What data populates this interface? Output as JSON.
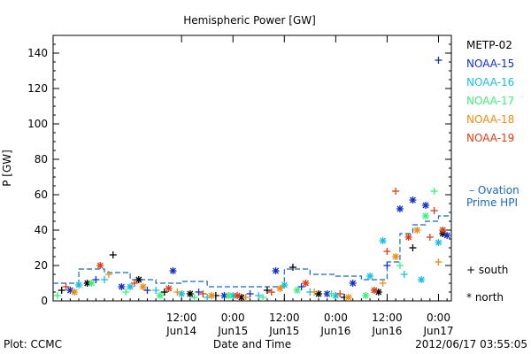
{
  "chart_data": {
    "type": "scatter",
    "title": "Hemispheric Power [GW]",
    "ylabel": "P [GW]",
    "xlabel": "Date and Time",
    "ylim": [
      0,
      150
    ],
    "yticks": [
      0,
      20,
      40,
      60,
      80,
      100,
      120,
      140
    ],
    "xlim": [
      "2012-06-13T06:00",
      "2012-06-17T03:00"
    ],
    "xticks": [
      {
        "t": "2012-06-14T12:00",
        "line1": "12:00",
        "line2": "Jun14"
      },
      {
        "t": "2012-06-15T00:00",
        "line1": "0:00",
        "line2": "Jun15"
      },
      {
        "t": "2012-06-15T12:00",
        "line1": "12:00",
        "line2": "Jun15"
      },
      {
        "t": "2012-06-16T00:00",
        "line1": "0:00",
        "line2": "Jun16"
      },
      {
        "t": "2012-06-16T12:00",
        "line1": "12:00",
        "line2": "Jun16"
      },
      {
        "t": "2012-06-17T00:00",
        "line1": "0:00",
        "line2": "Jun17"
      }
    ],
    "grid": false,
    "legend_position": "right",
    "series": [
      {
        "name": "METP-02",
        "color": "#000000",
        "points": [
          [
            "2012-06-13T08:00",
            6,
            "+"
          ],
          [
            "2012-06-13T14:00",
            10,
            "*"
          ],
          [
            "2012-06-13T20:00",
            26,
            "+"
          ],
          [
            "2012-06-14T02:00",
            12,
            "*"
          ],
          [
            "2012-06-14T08:00",
            5,
            "+"
          ],
          [
            "2012-06-14T14:00",
            4,
            "*"
          ],
          [
            "2012-06-14T20:00",
            3,
            "+"
          ],
          [
            "2012-06-15T02:00",
            2,
            "*"
          ],
          [
            "2012-06-15T08:00",
            6,
            "+"
          ],
          [
            "2012-06-15T14:00",
            19,
            "+"
          ],
          [
            "2012-06-15T20:00",
            4,
            "*"
          ],
          [
            "2012-06-16T02:00",
            2,
            "+"
          ],
          [
            "2012-06-16T10:00",
            5,
            "*"
          ],
          [
            "2012-06-16T18:00",
            30,
            "+"
          ],
          [
            "2012-06-17T01:00",
            38,
            "*"
          ]
        ]
      },
      {
        "name": "NOAA-15",
        "color": "#1030c8",
        "points": [
          [
            "2012-06-13T10:00",
            6,
            "*"
          ],
          [
            "2012-06-13T16:00",
            12,
            "+"
          ],
          [
            "2012-06-13T22:00",
            8,
            "*"
          ],
          [
            "2012-06-14T04:00",
            6,
            "+"
          ],
          [
            "2012-06-14T10:00",
            17,
            "*"
          ],
          [
            "2012-06-14T16:00",
            5,
            "+"
          ],
          [
            "2012-06-14T22:00",
            3,
            "*"
          ],
          [
            "2012-06-15T04:00",
            4,
            "+"
          ],
          [
            "2012-06-15T10:00",
            17,
            "*"
          ],
          [
            "2012-06-15T16:00",
            8,
            "+"
          ],
          [
            "2012-06-15T22:00",
            4,
            "*"
          ],
          [
            "2012-06-16T04:00",
            10,
            "*"
          ],
          [
            "2012-06-16T12:00",
            20,
            "+"
          ],
          [
            "2012-06-16T15:00",
            52,
            "*"
          ],
          [
            "2012-06-16T18:00",
            57,
            "*"
          ],
          [
            "2012-06-16T21:00",
            54,
            "*"
          ],
          [
            "2012-06-17T00:00",
            136,
            "+"
          ],
          [
            "2012-06-17T02:00",
            37,
            "*"
          ]
        ]
      },
      {
        "name": "NOAA-16",
        "color": "#18c0e0",
        "points": [
          [
            "2012-06-13T12:00",
            9,
            "*"
          ],
          [
            "2012-06-13T18:00",
            12,
            "+"
          ],
          [
            "2012-06-14T00:00",
            8,
            "*"
          ],
          [
            "2012-06-14T06:00",
            6,
            "+"
          ],
          [
            "2012-06-14T12:00",
            4,
            "*"
          ],
          [
            "2012-06-14T18:00",
            2,
            "+"
          ],
          [
            "2012-06-15T00:00",
            3,
            "*"
          ],
          [
            "2012-06-15T06:00",
            3,
            "+"
          ],
          [
            "2012-06-15T12:00",
            9,
            "*"
          ],
          [
            "2012-06-15T18:00",
            5,
            "+"
          ],
          [
            "2012-06-16T00:00",
            3,
            "*"
          ],
          [
            "2012-06-16T08:00",
            14,
            "*"
          ],
          [
            "2012-06-16T11:00",
            34,
            "*"
          ],
          [
            "2012-06-16T16:00",
            15,
            "+"
          ],
          [
            "2012-06-16T20:00",
            12,
            "*"
          ],
          [
            "2012-06-17T00:00",
            33,
            "*"
          ]
        ]
      },
      {
        "name": "NOAA-17",
        "color": "#3cf07c",
        "points": [
          [
            "2012-06-13T07:00",
            3,
            "+"
          ],
          [
            "2012-06-13T15:00",
            10,
            "*"
          ],
          [
            "2012-06-13T23:00",
            5,
            "+"
          ],
          [
            "2012-06-14T07:00",
            3,
            "*"
          ],
          [
            "2012-06-14T15:00",
            2,
            "+"
          ],
          [
            "2012-06-14T23:00",
            3,
            "*"
          ],
          [
            "2012-06-15T07:00",
            2,
            "+"
          ],
          [
            "2012-06-15T15:00",
            6,
            "*"
          ],
          [
            "2012-06-15T23:00",
            4,
            "+"
          ],
          [
            "2012-06-16T07:00",
            3,
            "*"
          ],
          [
            "2012-06-16T15:00",
            20,
            "+"
          ],
          [
            "2012-06-16T21:00",
            48,
            "*"
          ],
          [
            "2012-06-16T23:00",
            62,
            "+"
          ]
        ]
      },
      {
        "name": "NOAA-18",
        "color": "#f08c14",
        "points": [
          [
            "2012-06-13T11:00",
            5,
            "*"
          ],
          [
            "2012-06-13T19:00",
            15,
            "+"
          ],
          [
            "2012-06-14T03:00",
            8,
            "*"
          ],
          [
            "2012-06-14T11:00",
            5,
            "+"
          ],
          [
            "2012-06-14T19:00",
            3,
            "*"
          ],
          [
            "2012-06-15T03:00",
            2,
            "+"
          ],
          [
            "2012-06-15T11:00",
            7,
            "*"
          ],
          [
            "2012-06-15T19:00",
            5,
            "+"
          ],
          [
            "2012-06-16T03:00",
            2,
            "*"
          ],
          [
            "2012-06-16T11:00",
            10,
            "+"
          ],
          [
            "2012-06-16T14:00",
            25,
            "*"
          ],
          [
            "2012-06-16T19:00",
            40,
            "*"
          ],
          [
            "2012-06-17T00:00",
            22,
            "+"
          ]
        ]
      },
      {
        "name": "NOAA-19",
        "color": "#e03c14",
        "points": [
          [
            "2012-06-13T09:00",
            8,
            "+"
          ],
          [
            "2012-06-13T17:00",
            20,
            "*"
          ],
          [
            "2012-06-14T01:00",
            10,
            "+"
          ],
          [
            "2012-06-14T09:00",
            7,
            "*"
          ],
          [
            "2012-06-14T17:00",
            4,
            "+"
          ],
          [
            "2012-06-15T01:00",
            3,
            "*"
          ],
          [
            "2012-06-15T09:00",
            5,
            "+"
          ],
          [
            "2012-06-15T17:00",
            10,
            "*"
          ],
          [
            "2012-06-16T01:00",
            4,
            "+"
          ],
          [
            "2012-06-16T09:00",
            6,
            "*"
          ],
          [
            "2012-06-16T12:00",
            28,
            "+"
          ],
          [
            "2012-06-16T14:00",
            62,
            "+"
          ],
          [
            "2012-06-16T17:00",
            36,
            "*"
          ],
          [
            "2012-06-16T22:00",
            36,
            "+"
          ],
          [
            "2012-06-16T23:00",
            51,
            "+"
          ],
          [
            "2012-06-17T01:00",
            40,
            "*"
          ]
        ]
      }
    ],
    "ovation": {
      "label_line1": "– Ovation",
      "label_line2": "Prime HPI",
      "color": "#1868c0",
      "points": [
        [
          "2012-06-13T06:00",
          10
        ],
        [
          "2012-06-13T12:00",
          18
        ],
        [
          "2012-06-13T18:00",
          16
        ],
        [
          "2012-06-14T00:00",
          12
        ],
        [
          "2012-06-14T06:00",
          10
        ],
        [
          "2012-06-14T12:00",
          11
        ],
        [
          "2012-06-14T18:00",
          8
        ],
        [
          "2012-06-15T00:00",
          8
        ],
        [
          "2012-06-15T06:00",
          8
        ],
        [
          "2012-06-15T12:00",
          18
        ],
        [
          "2012-06-15T18:00",
          15
        ],
        [
          "2012-06-16T00:00",
          14
        ],
        [
          "2012-06-16T06:00",
          12
        ],
        [
          "2012-06-16T10:00",
          12
        ],
        [
          "2012-06-16T12:00",
          22
        ],
        [
          "2012-06-16T15:00",
          38
        ],
        [
          "2012-06-16T18:00",
          43
        ],
        [
          "2012-06-16T21:00",
          45
        ],
        [
          "2012-06-17T00:00",
          48
        ],
        [
          "2012-06-17T03:00",
          48
        ]
      ]
    },
    "marker_legend": {
      "south": "+ south",
      "north": "* north"
    }
  },
  "footer": {
    "left": "Plot: CCMC",
    "right": "2012/06/17 03:55:05"
  }
}
